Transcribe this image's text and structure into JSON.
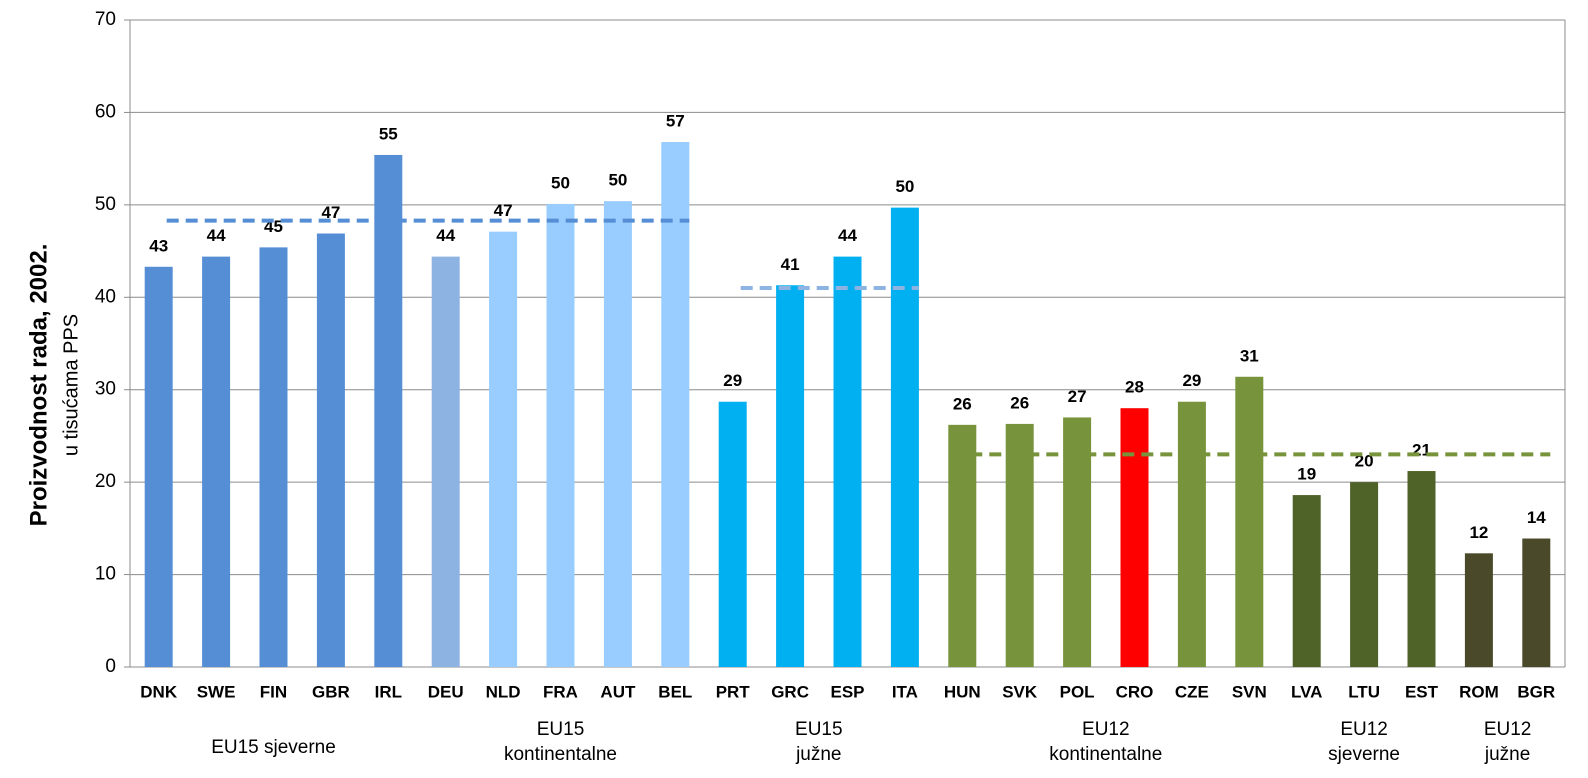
{
  "chart_data": {
    "type": "bar",
    "y_axis_title": "Proizvodnost rada, 2002.",
    "y_axis_subtitle": "u tisućama PPS",
    "categories": [
      "DNK",
      "SWE",
      "FIN",
      "GBR",
      "IRL",
      "DEU",
      "NLD",
      "FRA",
      "AUT",
      "BEL",
      "PRT",
      "GRC",
      "ESP",
      "ITA",
      "HUN",
      "SVK",
      "POL",
      "CRO",
      "CZE",
      "SVN",
      "LVA",
      "LTU",
      "EST",
      "ROM",
      "BGR"
    ],
    "values": [
      43.3,
      44.4,
      45.4,
      46.9,
      55.4,
      44.4,
      47.1,
      50.1,
      50.4,
      56.8,
      28.7,
      41.3,
      44.4,
      49.7,
      26.2,
      26.3,
      27.0,
      28.0,
      28.7,
      31.4,
      18.6,
      20.0,
      21.2,
      12.3,
      13.9
    ],
    "value_labels": [
      "43",
      "44",
      "45",
      "47",
      "55",
      "44",
      "47",
      "50",
      "50",
      "57",
      "29",
      "41",
      "44",
      "50",
      "26",
      "26",
      "27",
      "28",
      "29",
      "31",
      "19",
      "20",
      "21",
      "12",
      "14"
    ],
    "colors": [
      "#558ed5",
      "#558ed5",
      "#558ed5",
      "#558ed5",
      "#558ed5",
      "#8db3e2",
      "#99ccff",
      "#99ccff",
      "#99ccff",
      "#99ccff",
      "#00b0f0",
      "#00b0f0",
      "#00b0f0",
      "#00b0f0",
      "#77933c",
      "#77933c",
      "#77933c",
      "#ff0000",
      "#77933c",
      "#77933c",
      "#4f6228",
      "#4f6228",
      "#4f6228",
      "#4a4a2a",
      "#4a4a2a"
    ],
    "groups": [
      {
        "lines": [
          "EU15 sjeverne"
        ],
        "from": 0,
        "to": 4
      },
      {
        "lines": [
          "EU15",
          "kontinentalne"
        ],
        "from": 5,
        "to": 9
      },
      {
        "lines": [
          "EU15",
          "južne"
        ],
        "from": 10,
        "to": 13
      },
      {
        "lines": [
          "EU12",
          "kontinentalne"
        ],
        "from": 14,
        "to": 19
      },
      {
        "lines": [
          "EU12",
          "sjeverne"
        ],
        "from": 20,
        "to": 22
      },
      {
        "lines": [
          "EU12",
          "južne"
        ],
        "from": 23,
        "to": 24
      }
    ],
    "averages": [
      {
        "value": 48.3,
        "from": 0,
        "to": 9,
        "color": "#558ed5"
      },
      {
        "value": 41,
        "from": 10,
        "to": 13,
        "color": "#8db3e2"
      },
      {
        "value": 23,
        "from": 14,
        "to": 24,
        "color": "#77933c"
      }
    ],
    "ylim": [
      0,
      70
    ],
    "yticks": [
      0,
      10,
      20,
      30,
      40,
      50,
      60,
      70
    ],
    "grid": true
  }
}
